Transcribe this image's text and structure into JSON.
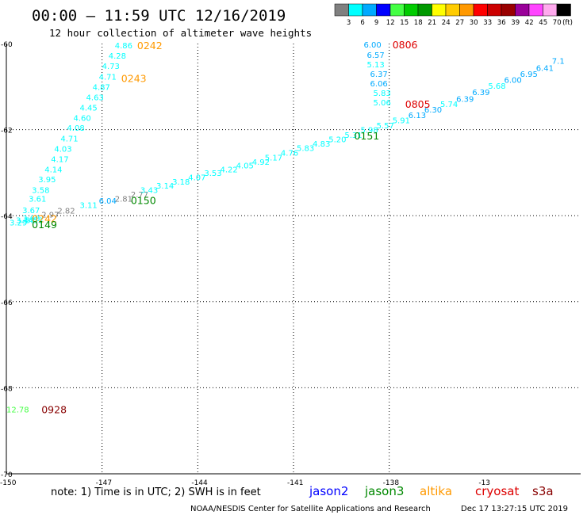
{
  "header": {
    "title": "00:00 – 11:59 UTC 12/16/2019",
    "subtitle": "12 hour collection of altimeter wave heights"
  },
  "color_scale": {
    "labels": [
      "3",
      "6",
      "9",
      "12",
      "15",
      "18",
      "21",
      "24",
      "27",
      "30",
      "33",
      "36",
      "39",
      "42",
      "45",
      "70",
      "(ft)"
    ],
    "colors": [
      "#808080",
      "#00ffff",
      "#00aaff",
      "#0000ff",
      "#44ff44",
      "#00cc00",
      "#009900",
      "#ffff00",
      "#ffcc00",
      "#ff9900",
      "#ff0000",
      "#cc0000",
      "#990000",
      "#990099",
      "#ff44ff",
      "#ffaaee",
      "#000000"
    ]
  },
  "footer": {
    "note": "note: 1) Time is in UTC; 2) SWH is in feet",
    "credit": "NOAA/NESDIS Center for Satellite Applications and Research",
    "timestamp": "Dec 17 13:27:15 UTC 2019"
  },
  "satellites": [
    {
      "name": "jason2",
      "color": "#0000ff"
    },
    {
      "name": "jason3",
      "color": "#008800"
    },
    {
      "name": "altika",
      "color": "#ff9900"
    },
    {
      "name": "cryosat",
      "color": "#dd0000"
    },
    {
      "name": "s3a",
      "color": "#880000"
    }
  ],
  "chart_data": {
    "type": "scatter",
    "title": "00:00 – 11:59 UTC 12/16/2019",
    "subtitle": "12 hour collection of altimeter wave heights",
    "xlabel": "",
    "ylabel": "",
    "xlim": [
      -150,
      -132
    ],
    "ylim": [
      -70,
      -60
    ],
    "x_ticks": [
      "-150",
      "-147",
      "-144",
      "-141",
      "-138",
      "-13"
    ],
    "y_ticks": [
      "-60",
      "-62",
      "-64",
      "-66",
      "-68",
      "-70"
    ],
    "grid": true,
    "series": [
      {
        "name": "altika",
        "color": "#ff9900",
        "points": [
          {
            "x": -149.9,
            "y": -64.15,
            "v": "3.29"
          },
          {
            "x": -149.7,
            "y": -64.1,
            "v": "3.44"
          },
          {
            "x": -149.5,
            "y": -64.05,
            "v": "3.68"
          },
          {
            "x": -149.5,
            "y": -63.87,
            "v": "3.67"
          },
          {
            "x": -149.3,
            "y": -63.6,
            "v": "3.61"
          },
          {
            "x": -149.2,
            "y": -63.4,
            "v": "3.58"
          },
          {
            "x": -149.0,
            "y": -63.15,
            "v": "3.95"
          },
          {
            "x": -148.8,
            "y": -62.92,
            "v": "4.14"
          },
          {
            "x": -148.6,
            "y": -62.68,
            "v": "4.17"
          },
          {
            "x": -148.5,
            "y": -62.44,
            "v": "4.03"
          },
          {
            "x": -148.3,
            "y": -62.2,
            "v": "4.71"
          },
          {
            "x": -148.1,
            "y": -61.95,
            "v": "4.08"
          },
          {
            "x": -147.9,
            "y": -61.72,
            "v": "4.60"
          },
          {
            "x": -147.7,
            "y": -61.48,
            "v": "4.45"
          },
          {
            "x": -147.5,
            "y": -61.24,
            "v": "4.63"
          },
          {
            "x": -147.3,
            "y": -61.0,
            "v": "4.87"
          },
          {
            "x": -147.1,
            "y": -60.76,
            "v": "4.71"
          },
          {
            "x": -147.0,
            "y": -60.52,
            "v": "4.73"
          },
          {
            "x": -146.8,
            "y": -60.28,
            "v": "4.28"
          },
          {
            "x": -146.6,
            "y": -60.04,
            "v": "4.86"
          }
        ],
        "time_labels": [
          {
            "x": -149.2,
            "y": -64.06,
            "t": "0242"
          },
          {
            "x": -145.9,
            "y": -60.04,
            "t": "0242"
          },
          {
            "x": -146.4,
            "y": -60.8,
            "t": "0243"
          }
        ]
      },
      {
        "name": "jason3",
        "color": "#008800",
        "points": [
          {
            "x": -149.4,
            "y": -64.1,
            "v": "3.53"
          },
          {
            "x": -148.9,
            "y": -63.97,
            "v": "2.97"
          },
          {
            "x": -148.4,
            "y": -63.88,
            "v": "2.82"
          },
          {
            "x": -147.7,
            "y": -63.75,
            "v": "3.11"
          },
          {
            "x": -147.1,
            "y": -63.65,
            "v": "6.04"
          },
          {
            "x": -146.6,
            "y": -63.6,
            "v": "2.81"
          },
          {
            "x": -146.1,
            "y": -63.5,
            "v": "2.77"
          },
          {
            "x": -145.8,
            "y": -63.4,
            "v": "3.43"
          },
          {
            "x": -145.3,
            "y": -63.3,
            "v": "3.14"
          },
          {
            "x": -144.8,
            "y": -63.2,
            "v": "3.18"
          },
          {
            "x": -144.3,
            "y": -63.1,
            "v": "4.07"
          },
          {
            "x": -143.8,
            "y": -63.0,
            "v": "3.53"
          },
          {
            "x": -143.3,
            "y": -62.92,
            "v": "4.22"
          },
          {
            "x": -142.8,
            "y": -62.83,
            "v": "4.05"
          },
          {
            "x": -142.3,
            "y": -62.74,
            "v": "4.92"
          },
          {
            "x": -141.9,
            "y": -62.64,
            "v": "5.17"
          },
          {
            "x": -141.4,
            "y": -62.53,
            "v": "4.76"
          },
          {
            "x": -140.9,
            "y": -62.42,
            "v": "5.83"
          },
          {
            "x": -140.4,
            "y": -62.32,
            "v": "4.83"
          },
          {
            "x": -139.9,
            "y": -62.22,
            "v": "5.20"
          },
          {
            "x": -139.4,
            "y": -62.12,
            "v": "5.31"
          },
          {
            "x": -138.9,
            "y": -62.0,
            "v": "5.98"
          },
          {
            "x": -138.4,
            "y": -61.9,
            "v": "5.57"
          },
          {
            "x": -137.9,
            "y": -61.78,
            "v": "5.91"
          },
          {
            "x": -137.4,
            "y": -61.66,
            "v": "6.13"
          },
          {
            "x": -136.9,
            "y": -61.53,
            "v": "6.30"
          },
          {
            "x": -136.4,
            "y": -61.4,
            "v": "5.74"
          },
          {
            "x": -135.9,
            "y": -61.28,
            "v": "6.39"
          },
          {
            "x": -135.4,
            "y": -61.12,
            "v": "6.39"
          },
          {
            "x": -134.9,
            "y": -60.98,
            "v": "5.68"
          },
          {
            "x": -134.4,
            "y": -60.84,
            "v": "6.00"
          },
          {
            "x": -133.9,
            "y": -60.7,
            "v": "6.95"
          },
          {
            "x": -133.4,
            "y": -60.56,
            "v": "6.41"
          },
          {
            "x": -132.9,
            "y": -60.4,
            "v": "7.1"
          }
        ],
        "time_labels": [
          {
            "x": -149.2,
            "y": -64.2,
            "t": "0149"
          },
          {
            "x": -146.1,
            "y": -63.64,
            "t": "0150"
          },
          {
            "x": -139.1,
            "y": -62.14,
            "t": "0151"
          }
        ]
      },
      {
        "name": "cryosat",
        "color": "#dd0000",
        "points": [
          {
            "x": -138.8,
            "y": -60.02,
            "v": "6.00"
          },
          {
            "x": -138.7,
            "y": -60.26,
            "v": "6.57"
          },
          {
            "x": -138.7,
            "y": -60.48,
            "v": "5.13"
          },
          {
            "x": -138.6,
            "y": -60.7,
            "v": "6.37"
          },
          {
            "x": -138.6,
            "y": -60.92,
            "v": "6.06"
          },
          {
            "x": -138.5,
            "y": -61.14,
            "v": "5.83"
          },
          {
            "x": -138.5,
            "y": -61.36,
            "v": "5.06"
          }
        ],
        "time_labels": [
          {
            "x": -137.9,
            "y": -60.02,
            "t": "0806"
          },
          {
            "x": -137.5,
            "y": -61.4,
            "t": "0805"
          }
        ]
      },
      {
        "name": "s3a",
        "color": "#880000",
        "points": [
          {
            "x": -150.0,
            "y": -68.5,
            "v": "12.78"
          }
        ],
        "time_labels": [
          {
            "x": -148.9,
            "y": -68.5,
            "t": "0928"
          }
        ]
      }
    ]
  }
}
